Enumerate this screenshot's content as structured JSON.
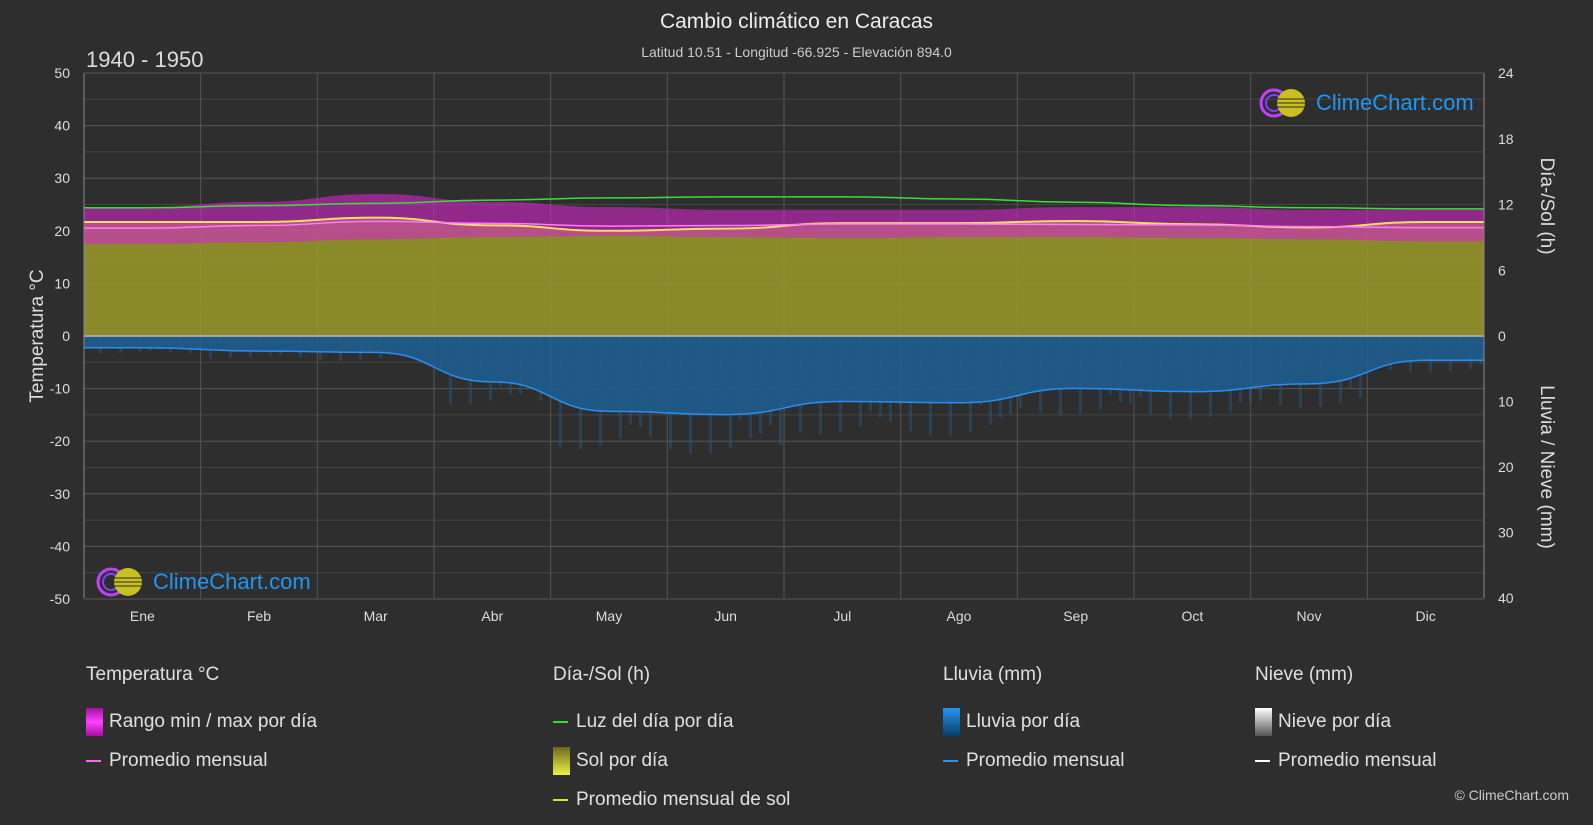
{
  "header": {
    "title": "Cambio climático en Caracas",
    "subtitle": "Latitud 10.51 - Longitud -66.925 - Elevación 894.0",
    "period": "1940 - 1950"
  },
  "brand": {
    "logo_text": "ClimeChart.com",
    "copyright": "© ClimeChart.com"
  },
  "axes": {
    "left_label": "Temperatura °C",
    "right_top_label": "Día-/Sol (h)",
    "right_bottom_label": "Lluvia / Nieve (mm)",
    "left_ticks": [
      50,
      40,
      30,
      20,
      10,
      0,
      -10,
      -20,
      -30,
      -40,
      -50
    ],
    "right_top_ticks": [
      24,
      18,
      12,
      6,
      0
    ],
    "right_bottom_ticks": [
      10,
      20,
      30,
      40
    ]
  },
  "chart_data": {
    "type": "area",
    "categories": [
      "Ene",
      "Feb",
      "Mar",
      "Abr",
      "May",
      "Jun",
      "Jul",
      "Ago",
      "Sep",
      "Oct",
      "Nov",
      "Dic"
    ],
    "temperature_ylim": [
      -50,
      50
    ],
    "sun_ylim": [
      0,
      24
    ],
    "precip_ylim_mm": [
      0,
      40
    ],
    "series": [
      {
        "name": "Luz del día por día",
        "unit": "h",
        "values": [
          11.7,
          11.9,
          12.1,
          12.4,
          12.6,
          12.7,
          12.7,
          12.5,
          12.2,
          11.9,
          11.7,
          11.6
        ]
      },
      {
        "name": "Promedio mensual de sol",
        "unit": "h",
        "values": [
          10.4,
          10.4,
          10.8,
          10.1,
          9.6,
          9.8,
          10.3,
          10.3,
          10.5,
          10.2,
          9.9,
          10.4
        ]
      },
      {
        "name": "Promedio mensual",
        "unit": "°C",
        "values": [
          20.5,
          21.0,
          21.8,
          21.4,
          20.9,
          21.0,
          21.3,
          21.3,
          21.2,
          21.1,
          20.8,
          20.6
        ]
      },
      {
        "name": "Rango min / max por día",
        "unit": "°C",
        "min": [
          17.5,
          17.8,
          18.4,
          18.8,
          19.0,
          18.8,
          18.6,
          18.8,
          18.8,
          18.6,
          18.4,
          18.0
        ],
        "max": [
          24.5,
          25.5,
          27.0,
          25.5,
          24.5,
          24.0,
          24.0,
          24.0,
          24.5,
          24.5,
          24.0,
          24.0
        ]
      },
      {
        "name": "Lluvia por día (promedio mensual)",
        "unit": "mm",
        "values": [
          1.8,
          2.3,
          2.5,
          7.0,
          11.5,
          12.0,
          10.0,
          10.2,
          8.0,
          8.5,
          7.3,
          3.7
        ]
      },
      {
        "name": "Nieve por día (promedio mensual)",
        "unit": "mm",
        "values": [
          0,
          0,
          0,
          0,
          0,
          0,
          0,
          0,
          0,
          0,
          0,
          0
        ]
      }
    ]
  },
  "legend": {
    "groups": [
      {
        "title": "Temperatura °C",
        "items": [
          {
            "label": "Rango min / max por día",
            "kind": "box",
            "color": "#e020e0"
          },
          {
            "label": "Promedio mensual",
            "kind": "line",
            "color": "#ff66ff"
          }
        ]
      },
      {
        "title": "Día-/Sol (h)",
        "items": [
          {
            "label": "Luz del día por día",
            "kind": "line",
            "color": "#33dd33"
          },
          {
            "label": "Sol por día",
            "kind": "box",
            "color": "#d8d820"
          },
          {
            "label": "Promedio mensual de sol",
            "kind": "line",
            "color": "#e0e020"
          }
        ]
      },
      {
        "title": "Lluvia (mm)",
        "items": [
          {
            "label": "Lluvia por día",
            "kind": "box",
            "color": "#1e88e5"
          },
          {
            "label": "Promedio mensual",
            "kind": "line",
            "color": "#2196f3"
          }
        ]
      },
      {
        "title": "Nieve (mm)",
        "items": [
          {
            "label": "Nieve por día",
            "kind": "box",
            "color": "#cccccc"
          },
          {
            "label": "Promedio mensual",
            "kind": "line",
            "color": "#ffffff"
          }
        ]
      }
    ]
  },
  "colors": {
    "background": "#2e2e2e",
    "grid": "#555555",
    "temp_band": "#d426c8",
    "temp_avg": "#ff7aff",
    "sun_fill": "#9a9a2a",
    "sun_avg": "#f0e060",
    "daylight": "#3ddc3d",
    "rain_fill": "#1a5f95",
    "rain_avg": "#2a8ef0"
  }
}
